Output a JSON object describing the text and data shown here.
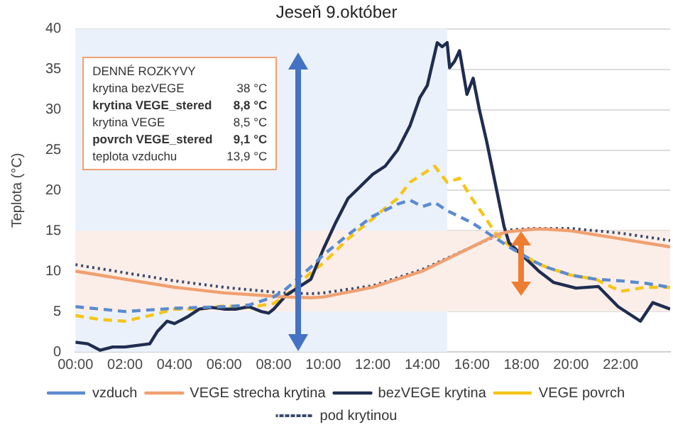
{
  "chart_data": {
    "type": "line",
    "title": "Jeseň 9.október",
    "ylabel": "Teplota (°C)",
    "xlim": [
      0,
      24
    ],
    "ylim": [
      0,
      40
    ],
    "xticks": [
      {
        "value": 0,
        "label": "00:00"
      },
      {
        "value": 2,
        "label": "02:00"
      },
      {
        "value": 4,
        "label": "04:00"
      },
      {
        "value": 6,
        "label": "06:00"
      },
      {
        "value": 8,
        "label": "08:00"
      },
      {
        "value": 10,
        "label": "10:00"
      },
      {
        "value": 12,
        "label": "12:00"
      },
      {
        "value": 14,
        "label": "14:00"
      },
      {
        "value": 16,
        "label": "16:00"
      },
      {
        "value": 18,
        "label": "18:00"
      },
      {
        "value": 20,
        "label": "20:00"
      },
      {
        "value": 22,
        "label": "22:00"
      }
    ],
    "yticks": [
      0,
      5,
      10,
      15,
      20,
      25,
      30,
      35,
      40
    ],
    "grid": "y",
    "legend": "bottom",
    "marker": "none",
    "bands": [
      {
        "axis": "x",
        "from": 0,
        "to": 15,
        "color": "#eaf1fa"
      },
      {
        "axis": "y",
        "from": 5,
        "to": 15,
        "color": "#fbeee8"
      }
    ],
    "annotations": [
      "DENNÉ ROZKYVY",
      "krytina bezVEGE",
      "38 °C",
      "krytina VEGE_stered",
      "8,8 °C",
      "krytina VEGE",
      "8,5 °C",
      "povrch VEGE_stered",
      "9,1 °C",
      "teplota vzduchu",
      "13,9 °C"
    ],
    "series": [
      {
        "name": "vzduch",
        "color": "#5b8bd0",
        "line_style": "dashed",
        "x": [
          0,
          1,
          2,
          3,
          4,
          5,
          6,
          7,
          8,
          8.5,
          9.5,
          10,
          11,
          12,
          13,
          13.5,
          14,
          14.5,
          15,
          16,
          17,
          17.5,
          18.5,
          19,
          20,
          21,
          22,
          23,
          24
        ],
        "values": [
          5.6,
          5.3,
          5.0,
          5.2,
          5.4,
          5.5,
          5.6,
          5.8,
          6.8,
          7.8,
          10.5,
          12,
          14.5,
          16.8,
          18.3,
          18.8,
          18,
          18.5,
          17.5,
          16,
          14,
          13,
          11.2,
          10.5,
          9.5,
          9,
          8.8,
          8.5,
          8
        ]
      },
      {
        "name": "VEGE strecha krytina",
        "color": "#f0a070",
        "line_style": "solid",
        "x": [
          0,
          2,
          4,
          6,
          8,
          8.5,
          9.5,
          10,
          12,
          14,
          16,
          17,
          17.5,
          18.5,
          19,
          20,
          22,
          24
        ],
        "values": [
          10,
          9,
          8,
          7.3,
          6.9,
          6.8,
          6.7,
          6.8,
          8,
          10,
          13,
          14.5,
          14.9,
          15.2,
          15.2,
          15,
          14,
          13
        ]
      },
      {
        "name": "bezVEGE krytina",
        "color": "#1f2d50",
        "line_style": "solid",
        "x": [
          0,
          0.5,
          1,
          1.5,
          2,
          2.5,
          3,
          3.3,
          3.7,
          4,
          4.5,
          5,
          5.5,
          6,
          6.5,
          7,
          7.5,
          7.8,
          8,
          8.5,
          9.5,
          10,
          10.5,
          11,
          11.5,
          12,
          12.5,
          13,
          13.5,
          13.9,
          14.2,
          14.6,
          14.8,
          15,
          15.1,
          15.3,
          15.5,
          15.8,
          16.05,
          16.3,
          16.6,
          17,
          17.3,
          17.5,
          18.5,
          18.7,
          19.3,
          20.2,
          21.1,
          21.9,
          22.8,
          23.3,
          24
        ],
        "values": [
          1.2,
          1,
          0.2,
          0.6,
          0.6,
          0.8,
          1,
          2.5,
          3.8,
          3.5,
          4.3,
          5.3,
          5.5,
          5.3,
          5.3,
          5.6,
          5,
          4.8,
          5.3,
          7,
          9,
          12.7,
          16,
          19,
          20.5,
          22,
          23,
          25,
          28,
          31.5,
          33,
          38.3,
          37.8,
          38.3,
          35.2,
          36,
          37.3,
          31.9,
          33.9,
          30,
          26,
          20,
          15.5,
          13.5,
          10.6,
          10,
          8.6,
          7.9,
          8.1,
          5.6,
          3.8,
          6.1,
          5.3
        ]
      },
      {
        "name": "VEGE povrch",
        "color": "#f5c518",
        "line_style": "dashed",
        "x": [
          0,
          1,
          2,
          3,
          4,
          5,
          6,
          7,
          8,
          8.5,
          9.5,
          10,
          11,
          12,
          12.5,
          13,
          13.5,
          14,
          14.5,
          15,
          15.5,
          16,
          16.5,
          17,
          17.5,
          18.5,
          19,
          20,
          21,
          22,
          23,
          24
        ],
        "values": [
          4.5,
          4,
          3.8,
          4.5,
          5.3,
          5.3,
          5.7,
          5.5,
          6,
          7,
          9.8,
          11,
          14,
          16.5,
          17.8,
          19,
          21,
          22,
          23,
          21,
          21.5,
          19,
          16.8,
          14.5,
          13.2,
          11.2,
          10.5,
          9.5,
          9,
          7.5,
          8,
          8
        ]
      },
      {
        "name": "pod krytinou",
        "color": "#3a4a6b",
        "line_style": "dotted",
        "x": [
          0,
          2,
          4,
          6,
          8,
          8.5,
          9.5,
          10,
          12,
          14,
          16,
          17.5,
          18.5,
          20,
          22,
          24
        ],
        "values": [
          10.8,
          9.8,
          8.8,
          8,
          7.4,
          7.3,
          7.2,
          7.3,
          8.2,
          10.2,
          13,
          15.1,
          15.3,
          15.3,
          14.7,
          13.8
        ]
      }
    ]
  }
}
